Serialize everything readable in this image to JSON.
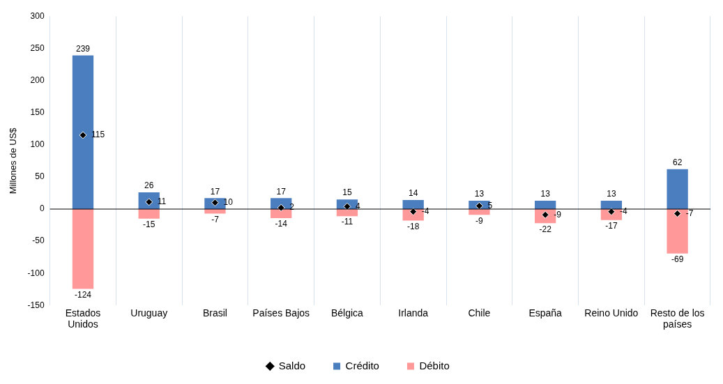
{
  "chart_data": {
    "type": "bar",
    "ylabel": "Millones de US$",
    "stacked": true,
    "categories": [
      "Estados Unidos",
      "Uruguay",
      "Brasil",
      "Países Bajos",
      "Bélgica",
      "Irlanda",
      "Chile",
      "España",
      "Reino Unido",
      "Resto de los países"
    ],
    "series": [
      {
        "name": "Crédito",
        "color": "#4a7ebf",
        "values": [
          239,
          26,
          17,
          17,
          15,
          14,
          13,
          13,
          13,
          62
        ]
      },
      {
        "name": "Débito",
        "color": "#ff9999",
        "values": [
          -124,
          -15,
          -7,
          -14,
          -11,
          -18,
          -9,
          -22,
          -17,
          -69
        ]
      },
      {
        "name": "Saldo",
        "type": "scatter",
        "color": "#000000",
        "marker": "diamond",
        "x": [
          "Estados Unidos",
          "Uruguay",
          "Brasil",
          "Países Bajos",
          "Bélgica",
          "Irlanda",
          "Chile",
          "España",
          "Reino Unido",
          "Resto de los países"
        ],
        "values": [
          115,
          11,
          10,
          2,
          4,
          -4,
          5,
          -9,
          -4,
          -7
        ]
      }
    ],
    "ylim": [
      -150,
      300
    ],
    "yticks": [
      -150,
      -100,
      -50,
      0,
      50,
      100,
      150,
      200,
      250,
      300
    ],
    "grid": "x",
    "legend": "bottom",
    "data_labels": true
  }
}
